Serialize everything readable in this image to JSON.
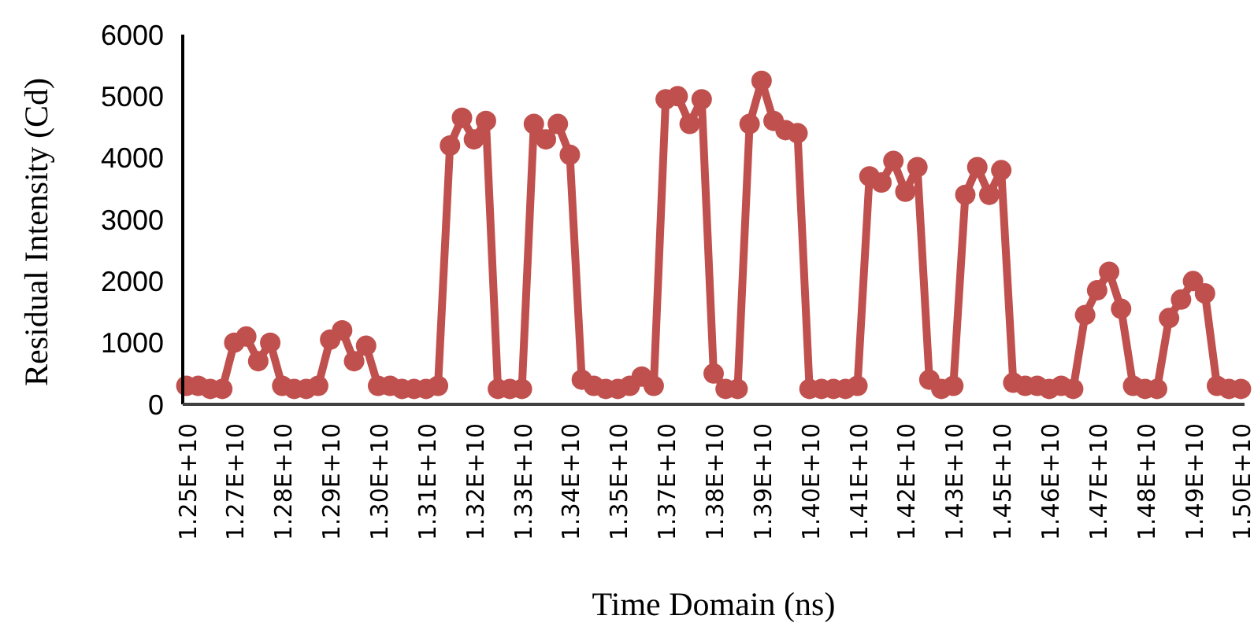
{
  "chart_data": {
    "type": "line",
    "xlabel": "Time Domain (ns)",
    "ylabel": "Residual Intensity (Cd)",
    "categories": [
      "1.25E+10",
      null,
      null,
      null,
      "1.27E+10",
      null,
      null,
      null,
      "1.28E+10",
      null,
      null,
      null,
      "1.29E+10",
      null,
      null,
      null,
      "1.30E+10",
      null,
      null,
      null,
      "1.31E+10",
      null,
      null,
      null,
      "1.32E+10",
      null,
      null,
      null,
      "1.33E+10",
      null,
      null,
      null,
      "1.34E+10",
      null,
      null,
      null,
      "1.35E+10",
      null,
      null,
      null,
      "1.37E+10",
      null,
      null,
      null,
      "1.38E+10",
      null,
      null,
      null,
      "1.39E+10",
      null,
      null,
      null,
      "1.40E+10",
      null,
      null,
      null,
      "1.41E+10",
      null,
      null,
      null,
      "1.42E+10",
      null,
      null,
      null,
      "1.43E+10",
      null,
      null,
      null,
      "1.45E+10",
      null,
      null,
      null,
      "1.46E+10",
      null,
      null,
      null,
      "1.47E+10",
      null,
      null,
      null,
      "1.48E+10",
      null,
      null,
      null,
      "1.49E+10",
      null,
      null,
      null,
      "1.50E+10"
    ],
    "series": [
      {
        "color": "#c0504d",
        "values": [
          300,
          300,
          250,
          250,
          1000,
          1100,
          700,
          1000,
          300,
          250,
          250,
          300,
          1050,
          1200,
          700,
          950,
          300,
          300,
          250,
          250,
          250,
          300,
          4200,
          4650,
          4300,
          4600,
          250,
          250,
          250,
          4550,
          4300,
          4550,
          4050,
          400,
          300,
          250,
          250,
          300,
          450,
          300,
          4950,
          5000,
          4550,
          4950,
          500,
          250,
          250,
          4550,
          5250,
          4600,
          4450,
          4400,
          250,
          250,
          250,
          250,
          300,
          3700,
          3600,
          3950,
          3450,
          3850,
          400,
          250,
          300,
          3400,
          3850,
          3400,
          3800,
          350,
          300,
          300,
          250,
          300,
          250,
          1450,
          1850,
          2150,
          1550,
          300,
          250,
          250,
          1400,
          1700,
          2000,
          1800,
          300,
          250,
          250
        ]
      }
    ],
    "ylim": [
      0,
      6000
    ],
    "yticks": [
      0,
      1000,
      2000,
      3000,
      4000,
      5000,
      6000
    ],
    "marker": "circle",
    "line_style": "solid"
  }
}
